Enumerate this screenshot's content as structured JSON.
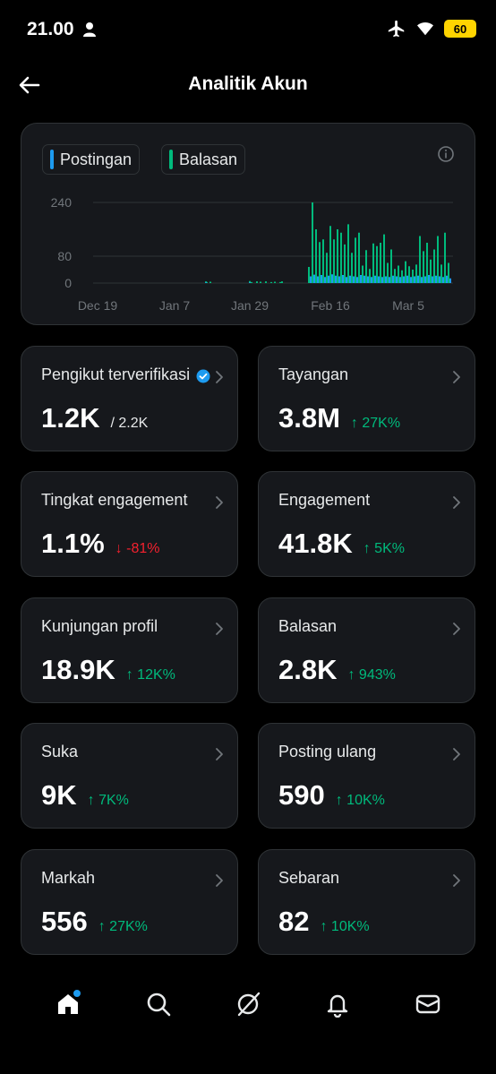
{
  "status": {
    "time": "21.00",
    "battery": "60"
  },
  "header": {
    "title": "Analitik Akun"
  },
  "chart": {
    "legend": [
      {
        "label": "Postingan",
        "color": "#1d9bf0"
      },
      {
        "label": "Balasan",
        "color": "#00ba7c"
      }
    ],
    "y_ticks": [
      "240",
      "80",
      "0"
    ],
    "x_ticks": [
      "Dec 19",
      "Jan 7",
      "Jan 29",
      "Feb 16",
      "Mar 5"
    ]
  },
  "chart_data": {
    "type": "bar",
    "ylim": [
      0,
      240
    ],
    "y_ticks": [
      0,
      80,
      240
    ],
    "x_ticks": [
      "Dec 19",
      "Jan 7",
      "Jan 29",
      "Feb 16",
      "Mar 5"
    ],
    "grid": true,
    "legend_position": "top-left",
    "series": [
      {
        "name": "Postingan",
        "color": "#1d9bf0",
        "values": [
          0,
          0,
          0,
          0,
          0,
          0,
          0,
          0,
          0,
          0,
          0,
          0,
          0,
          0,
          0,
          0,
          0,
          0,
          0,
          0,
          0,
          0,
          0,
          0,
          0,
          0,
          0,
          0,
          0,
          0,
          0,
          0,
          0,
          0,
          0,
          0,
          0,
          0,
          0,
          0,
          0,
          0,
          0,
          0,
          0,
          0,
          0,
          0,
          0,
          0,
          0,
          0,
          0,
          0,
          0,
          0,
          0,
          0,
          0,
          0,
          0,
          0,
          0,
          0,
          0,
          0,
          0,
          0,
          0,
          0,
          0,
          0,
          0,
          0,
          0,
          0,
          0,
          0,
          0,
          0,
          0,
          0,
          0,
          0,
          0,
          0,
          0,
          0,
          0,
          0,
          0,
          0,
          0,
          0,
          0,
          0,
          0,
          0,
          0,
          0,
          0,
          0,
          0,
          0,
          0,
          0,
          0,
          0,
          0,
          0,
          0,
          0,
          0,
          0,
          0,
          0,
          0,
          0,
          0,
          0,
          0,
          0,
          0,
          0,
          0,
          0,
          0,
          0,
          0,
          0,
          0,
          0,
          0,
          0,
          0,
          0,
          0,
          0,
          0,
          0,
          0,
          0,
          0,
          0,
          0,
          0,
          0,
          0,
          0,
          0,
          0,
          0,
          0,
          0,
          0,
          0,
          0,
          0,
          0,
          0,
          0,
          0,
          0,
          0,
          0,
          0,
          0,
          0,
          0,
          0,
          0,
          0,
          0,
          0,
          0,
          0,
          0,
          0,
          0,
          0,
          0,
          0,
          0,
          0,
          0,
          0,
          0,
          0,
          0,
          0,
          0,
          0,
          0,
          0,
          0,
          0,
          0,
          0,
          0,
          0,
          0,
          0,
          0,
          0,
          0,
          0,
          0,
          0,
          0,
          0,
          0,
          0,
          0,
          0,
          0,
          0,
          0,
          0,
          0,
          0,
          0,
          0,
          0,
          0,
          0,
          0
        ]
      },
      {
        "name": "Balasan",
        "color": "#00ba7c",
        "values": [
          0,
          0,
          0,
          0,
          0,
          0,
          0,
          0,
          0,
          0,
          0,
          0,
          0,
          0,
          0,
          0,
          0,
          0,
          0,
          0,
          0,
          0,
          0,
          0,
          0,
          0,
          0,
          0,
          0,
          0,
          0,
          0,
          0,
          0,
          0,
          0,
          0,
          0,
          0,
          0,
          0,
          0,
          0,
          0,
          0,
          0,
          0,
          0,
          0,
          0,
          0,
          0,
          0,
          0,
          0,
          0,
          0,
          0,
          0,
          0,
          0,
          0,
          0,
          0,
          0,
          0,
          0,
          0,
          0,
          0,
          0,
          0,
          0,
          0,
          0,
          0,
          0,
          0,
          0,
          0,
          0,
          0,
          0,
          0,
          0,
          0,
          0,
          0,
          0,
          0,
          0,
          0,
          0,
          0,
          0,
          0,
          0,
          0,
          0,
          0,
          0,
          0,
          0,
          0,
          0,
          0,
          0,
          0,
          0,
          0,
          0,
          0,
          0,
          0,
          0,
          0,
          0,
          0,
          0,
          0,
          0,
          0,
          0,
          0,
          0,
          0,
          0,
          0,
          0,
          0,
          0,
          0,
          0,
          0,
          0,
          0,
          0,
          0,
          0,
          0,
          0,
          0,
          0,
          0,
          0,
          0,
          0,
          0,
          0,
          0,
          0,
          0,
          0,
          0,
          0,
          0,
          0,
          0,
          0,
          0,
          0,
          0,
          0,
          0,
          0,
          0,
          0,
          0,
          0,
          0,
          0,
          0,
          0,
          0,
          0,
          0,
          0,
          0,
          0,
          0,
          0,
          0,
          0,
          0,
          0,
          0,
          0,
          0,
          0,
          0,
          0,
          0,
          0,
          0,
          0,
          0,
          0,
          0,
          0,
          0,
          0,
          0,
          0,
          0,
          0,
          0,
          0,
          0,
          0,
          0,
          0,
          0,
          0,
          0,
          0,
          0,
          0,
          0,
          0,
          0,
          0,
          0,
          0,
          0,
          0,
          0,
          0,
          0
        ]
      }
    ]
  },
  "stats": [
    {
      "label": "Pengikut terverifikasi",
      "value": "1.2K",
      "extra": "/ 2.2K",
      "change": "",
      "direction": ""
    },
    {
      "label": "Tayangan",
      "value": "3.8M",
      "extra": "",
      "change": "↑ 27K%",
      "direction": "up"
    },
    {
      "label": "Tingkat engagement",
      "value": "1.1%",
      "extra": "",
      "change": "↓ -81%",
      "direction": "down"
    },
    {
      "label": "Engagement",
      "value": "41.8K",
      "extra": "",
      "change": "↑ 5K%",
      "direction": "up"
    },
    {
      "label": "Kunjungan profil",
      "value": "18.9K",
      "extra": "",
      "change": "↑ 12K%",
      "direction": "up"
    },
    {
      "label": "Balasan",
      "value": "2.8K",
      "extra": "",
      "change": "↑ 943%",
      "direction": "up"
    },
    {
      "label": "Suka",
      "value": "9K",
      "extra": "",
      "change": "↑ 7K%",
      "direction": "up"
    },
    {
      "label": "Posting ulang",
      "value": "590",
      "extra": "",
      "change": "↑ 10K%",
      "direction": "up"
    },
    {
      "label": "Markah",
      "value": "556",
      "extra": "",
      "change": "↑ 27K%",
      "direction": "up"
    },
    {
      "label": "Sebaran",
      "value": "82",
      "extra": "",
      "change": "↑ 10K%",
      "direction": "up"
    }
  ],
  "nav": [
    {
      "name": "home-icon",
      "has_dot": true
    },
    {
      "name": "search-icon",
      "has_dot": false
    },
    {
      "name": "grok-icon",
      "has_dot": false
    },
    {
      "name": "notifications-icon",
      "has_dot": false
    },
    {
      "name": "messages-icon",
      "has_dot": false
    }
  ]
}
